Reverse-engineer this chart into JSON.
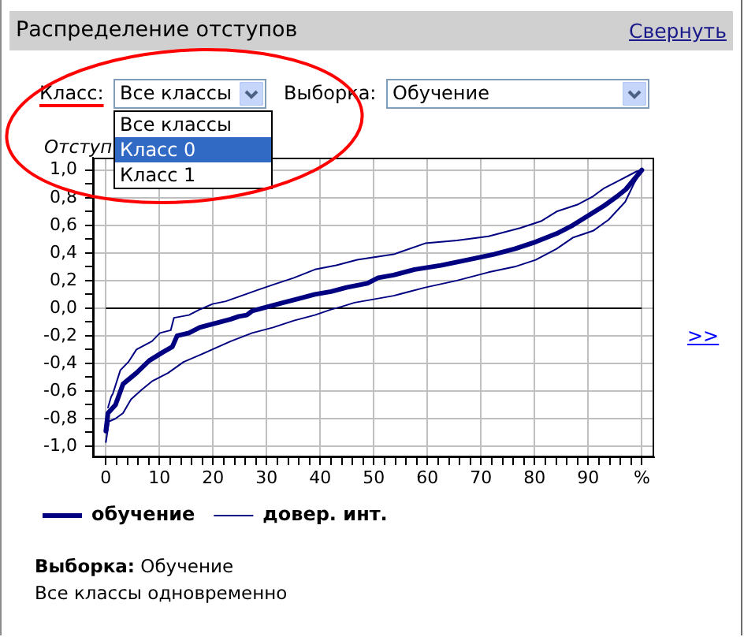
{
  "chart_data": {
    "type": "line",
    "title": "Распределение отступов",
    "ylabel": "Отступ",
    "series": [
      {
        "name": "обучение",
        "color": "#000080",
        "x": [
          0,
          0.4,
          1.8,
          3.2,
          5.7,
          8.1,
          10.6,
          12.4,
          13.3,
          15.5,
          17.5,
          20.4,
          23.3,
          24.8,
          26.3,
          27.3,
          30.2,
          33.1,
          36.1,
          39.0,
          42.0,
          44.9,
          48.8,
          50.8,
          53.7,
          57.6,
          62.5,
          67.5,
          72.4,
          76.3,
          80.2,
          84.1,
          87.1,
          90.0,
          92.9,
          95.4,
          97.0,
          98.5,
          100
        ],
        "values": [
          -0.89,
          -0.76,
          -0.7,
          -0.55,
          -0.47,
          -0.38,
          -0.32,
          -0.28,
          -0.2,
          -0.18,
          -0.14,
          -0.11,
          -0.08,
          -0.06,
          -0.05,
          -0.02,
          0.01,
          0.04,
          0.07,
          0.1,
          0.12,
          0.15,
          0.18,
          0.22,
          0.24,
          0.28,
          0.31,
          0.35,
          0.39,
          0.43,
          0.48,
          0.54,
          0.6,
          0.67,
          0.74,
          0.81,
          0.86,
          0.93,
          1.0
        ]
      },
      {
        "name": "довер. инт.",
        "color": "#000080",
        "x": [
          0.4,
          1.0,
          1.3,
          2.7,
          4.2,
          5.7,
          8.6,
          10.1,
          12.1,
          12.7,
          15.5,
          17.5,
          19.9,
          22.4,
          25.3,
          28.2,
          31.2,
          35.1,
          39.0,
          43.0,
          46.9,
          53.7,
          59.6,
          65.5,
          71.4,
          77.3,
          81.2,
          84.1,
          88.0,
          90.9,
          93.0,
          96.0,
          99.0,
          100
        ],
        "values": [
          -0.72,
          -0.64,
          -0.62,
          -0.45,
          -0.39,
          -0.3,
          -0.24,
          -0.18,
          -0.16,
          -0.07,
          -0.05,
          -0.01,
          0.03,
          0.05,
          0.09,
          0.13,
          0.17,
          0.22,
          0.28,
          0.31,
          0.35,
          0.39,
          0.47,
          0.49,
          0.52,
          0.58,
          0.63,
          0.7,
          0.75,
          0.81,
          0.87,
          0.93,
          0.99,
          1.0
        ]
      },
      {
        "color": "#000080",
        "x": [
          0,
          0.6,
          1.8,
          3.2,
          4.7,
          6.7,
          8.6,
          11.6,
          14.5,
          17.5,
          20.4,
          23.3,
          27.3,
          31.2,
          35.1,
          39.0,
          42.0,
          43.9,
          46.4,
          50.8,
          53.7,
          59.6,
          65.5,
          71.4,
          76.3,
          80.2,
          84.1,
          87.1,
          90.9,
          93.8,
          96.9,
          98.5,
          100
        ],
        "values": [
          -0.97,
          -0.82,
          -0.8,
          -0.76,
          -0.66,
          -0.59,
          -0.53,
          -0.47,
          -0.39,
          -0.34,
          -0.29,
          -0.24,
          -0.18,
          -0.14,
          -0.09,
          -0.05,
          -0.01,
          0.01,
          0.04,
          0.07,
          0.09,
          0.15,
          0.2,
          0.26,
          0.3,
          0.35,
          0.43,
          0.51,
          0.56,
          0.64,
          0.77,
          0.9,
          1.0
        ]
      }
    ],
    "xlim": [
      -2.4,
      102.3
    ],
    "ylim": [
      -1.08,
      1.09
    ],
    "xticks": [
      0,
      {
        "value": 2,
        "label": null
      },
      {
        "value": 4,
        "label": null
      },
      {
        "value": 6,
        "label": null
      },
      {
        "value": 8,
        "label": null
      },
      10,
      {
        "value": 12,
        "label": null
      },
      {
        "value": 14,
        "label": null
      },
      {
        "value": 16,
        "label": null
      },
      {
        "value": 18,
        "label": null
      },
      20,
      {
        "value": 22,
        "label": null
      },
      {
        "value": 24,
        "label": null
      },
      {
        "value": 26,
        "label": null
      },
      {
        "value": 28,
        "label": null
      },
      30,
      {
        "value": 32,
        "label": null
      },
      {
        "value": 34,
        "label": null
      },
      {
        "value": 36,
        "label": null
      },
      {
        "value": 38,
        "label": null
      },
      40,
      {
        "value": 42,
        "label": null
      },
      {
        "value": 44,
        "label": null
      },
      {
        "value": 46,
        "label": null
      },
      {
        "value": 48,
        "label": null
      },
      50,
      {
        "value": 52,
        "label": null
      },
      {
        "value": 54,
        "label": null
      },
      {
        "value": 56,
        "label": null
      },
      {
        "value": 58,
        "label": null
      },
      60,
      {
        "value": 62,
        "label": null
      },
      {
        "value": 64,
        "label": null
      },
      {
        "value": 66,
        "label": null
      },
      {
        "value": 68,
        "label": null
      },
      70,
      {
        "value": 72,
        "label": null
      },
      {
        "value": 74,
        "label": null
      },
      {
        "value": 76,
        "label": null
      },
      {
        "value": 78,
        "label": null
      },
      80,
      {
        "value": 82,
        "label": null
      },
      {
        "value": 84,
        "label": null
      },
      {
        "value": 86,
        "label": null
      },
      {
        "value": 88,
        "label": null
      },
      90,
      {
        "value": 92,
        "label": null
      },
      {
        "value": 94,
        "label": null
      },
      {
        "value": 96,
        "label": null
      },
      {
        "value": 98,
        "label": null
      },
      {
        "value": 100,
        "label": "%"
      }
    ],
    "yticks": [
      {
        "value": -1,
        "label": "-1,0"
      },
      {
        "value": -0.9,
        "label": null
      },
      {
        "value": -0.8,
        "label": "-0,8"
      },
      {
        "value": -0.7,
        "label": null
      },
      {
        "value": -0.6,
        "label": "-0,6"
      },
      {
        "value": -0.5,
        "label": null
      },
      {
        "value": -0.4,
        "label": "-0,4"
      },
      {
        "value": -0.3,
        "label": null
      },
      {
        "value": -0.2,
        "label": "-0,2"
      },
      {
        "value": -0.1,
        "label": null
      },
      {
        "value": 0,
        "label": "0,0"
      },
      {
        "value": 0.1,
        "label": null
      },
      {
        "value": 0.2,
        "label": "0,2"
      },
      {
        "value": 0.3,
        "label": null
      },
      {
        "value": 0.4,
        "label": "0,4"
      },
      {
        "value": 0.5,
        "label": null
      },
      {
        "value": 0.6,
        "label": "0,6"
      },
      {
        "value": 0.7,
        "label": null
      },
      {
        "value": 0.8,
        "label": "0,8"
      },
      {
        "value": 0.9,
        "label": null
      },
      {
        "value": 1,
        "label": "1,0"
      }
    ],
    "grid": true,
    "legend": "bottom left",
    "marker": "none",
    "ref_lines": [
      {
        "axis": "y",
        "value": 0,
        "color": "#000000"
      }
    ],
    "annotations": [
      "Свернуть",
      "Класс:",
      "Все классы",
      "Выборка:",
      "Обучение",
      "Все классы",
      "Класс 0",
      "Класс 1",
      ">>",
      "Выборка:",
      "Обучение",
      "Все классы одновременно"
    ]
  }
}
